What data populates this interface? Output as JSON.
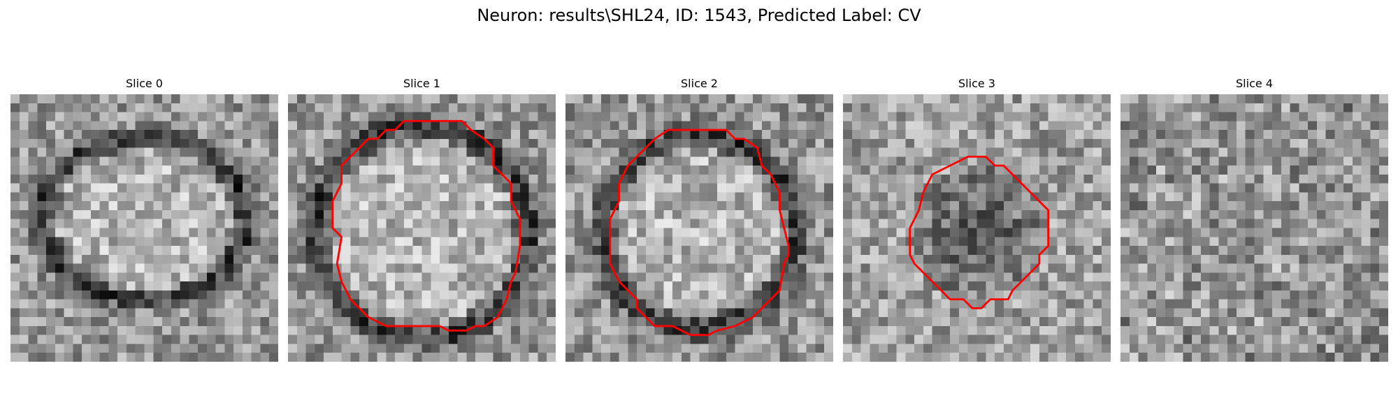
{
  "title": "Neuron: results\\SHL24, ID: 1543, Predicted Label: CV",
  "contour_color": "#ff0000",
  "slices": [
    {
      "label": "Slice 0",
      "pattern": "ring",
      "ring_radius": 0.38,
      "contour": false
    },
    {
      "label": "Slice 1",
      "pattern": "ring",
      "ring_radius": 0.4,
      "contour": true
    },
    {
      "label": "Slice 2",
      "pattern": "ring",
      "ring_radius": 0.36,
      "contour": true
    },
    {
      "label": "Slice 3",
      "pattern": "dark-disc",
      "ring_radius": 0.26,
      "contour": true
    },
    {
      "label": "Slice 4",
      "pattern": "noise",
      "ring_radius": 0,
      "contour": false
    }
  ]
}
